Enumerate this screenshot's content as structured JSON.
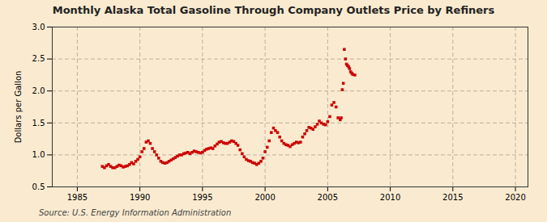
{
  "chart_data": {
    "type": "scatter",
    "title": "Monthly Alaska Total Gasoline Through Company Outlets Price by Refiners",
    "ylabel": "Dollars per Gallon",
    "source": "Source: U.S. Energy Information Administration",
    "color": "#cc0000",
    "marker": "square",
    "grid": true,
    "xlim": [
      1983,
      2021
    ],
    "ylim": [
      0.5,
      3.0
    ],
    "xticks": [
      1985,
      1990,
      1995,
      2000,
      2005,
      2010,
      2015,
      2020
    ],
    "yticks": [
      0.5,
      {
        "value": 1.0,
        "label": "1.0"
      },
      1.5,
      {
        "value": 2.0,
        "label": "2.0"
      },
      2.5,
      {
        "value": 3.0,
        "label": "3.0"
      }
    ],
    "x": [
      1987.0,
      1987.17,
      1987.33,
      1987.5,
      1987.67,
      1987.83,
      1988.0,
      1988.17,
      1988.33,
      1988.5,
      1988.67,
      1988.83,
      1989.0,
      1989.17,
      1989.33,
      1989.5,
      1989.67,
      1989.83,
      1990.0,
      1990.17,
      1990.33,
      1990.5,
      1990.67,
      1990.83,
      1991.0,
      1991.17,
      1991.33,
      1991.5,
      1991.67,
      1991.83,
      1992.0,
      1992.17,
      1992.33,
      1992.5,
      1992.67,
      1992.83,
      1993.0,
      1993.17,
      1993.33,
      1993.5,
      1993.67,
      1993.83,
      1994.0,
      1994.17,
      1994.33,
      1994.5,
      1994.67,
      1994.83,
      1995.0,
      1995.17,
      1995.33,
      1995.5,
      1995.67,
      1995.83,
      1996.0,
      1996.17,
      1996.33,
      1996.5,
      1996.67,
      1996.83,
      1997.0,
      1997.17,
      1997.33,
      1997.5,
      1997.67,
      1997.83,
      1998.0,
      1998.17,
      1998.33,
      1998.5,
      1998.67,
      1998.83,
      1999.0,
      1999.17,
      1999.33,
      1999.5,
      1999.67,
      1999.83,
      2000.0,
      2000.17,
      2000.33,
      2000.5,
      2000.67,
      2000.83,
      2001.0,
      2001.17,
      2001.33,
      2001.5,
      2001.67,
      2001.83,
      2002.0,
      2002.17,
      2002.33,
      2002.5,
      2002.67,
      2002.83,
      2003.0,
      2003.17,
      2003.33,
      2003.5,
      2003.67,
      2003.83,
      2004.0,
      2004.17,
      2004.33,
      2004.5,
      2004.67,
      2004.83,
      2005.0,
      2005.17,
      2005.33,
      2005.5,
      2005.67,
      2005.83,
      2006.0,
      2006.08,
      2006.17,
      2006.25,
      2006.33,
      2006.42,
      2006.5,
      2006.58,
      2006.67,
      2006.75,
      2006.83,
      2006.92,
      2007.0,
      2007.17
    ],
    "values": [
      0.82,
      0.8,
      0.83,
      0.85,
      0.82,
      0.8,
      0.8,
      0.82,
      0.84,
      0.83,
      0.81,
      0.82,
      0.83,
      0.85,
      0.88,
      0.86,
      0.9,
      0.93,
      0.97,
      1.05,
      1.1,
      1.2,
      1.22,
      1.18,
      1.1,
      1.05,
      1.0,
      0.95,
      0.9,
      0.88,
      0.87,
      0.88,
      0.9,
      0.92,
      0.94,
      0.96,
      0.98,
      1.0,
      1.0,
      1.02,
      1.03,
      1.04,
      1.02,
      1.04,
      1.06,
      1.05,
      1.04,
      1.03,
      1.04,
      1.07,
      1.09,
      1.1,
      1.11,
      1.1,
      1.14,
      1.17,
      1.2,
      1.21,
      1.19,
      1.18,
      1.18,
      1.2,
      1.22,
      1.21,
      1.18,
      1.15,
      1.08,
      1.02,
      0.97,
      0.93,
      0.91,
      0.9,
      0.88,
      0.87,
      0.85,
      0.87,
      0.9,
      0.95,
      1.05,
      1.12,
      1.22,
      1.35,
      1.42,
      1.38,
      1.35,
      1.28,
      1.22,
      1.18,
      1.16,
      1.15,
      1.13,
      1.16,
      1.18,
      1.2,
      1.19,
      1.2,
      1.28,
      1.33,
      1.38,
      1.43,
      1.42,
      1.4,
      1.44,
      1.48,
      1.53,
      1.5,
      1.48,
      1.47,
      1.52,
      1.6,
      1.78,
      1.82,
      1.75,
      1.58,
      1.55,
      1.58,
      2.02,
      2.12,
      2.65,
      2.5,
      2.42,
      2.4,
      2.38,
      2.35,
      2.3,
      2.28,
      2.26,
      2.25
    ]
  }
}
